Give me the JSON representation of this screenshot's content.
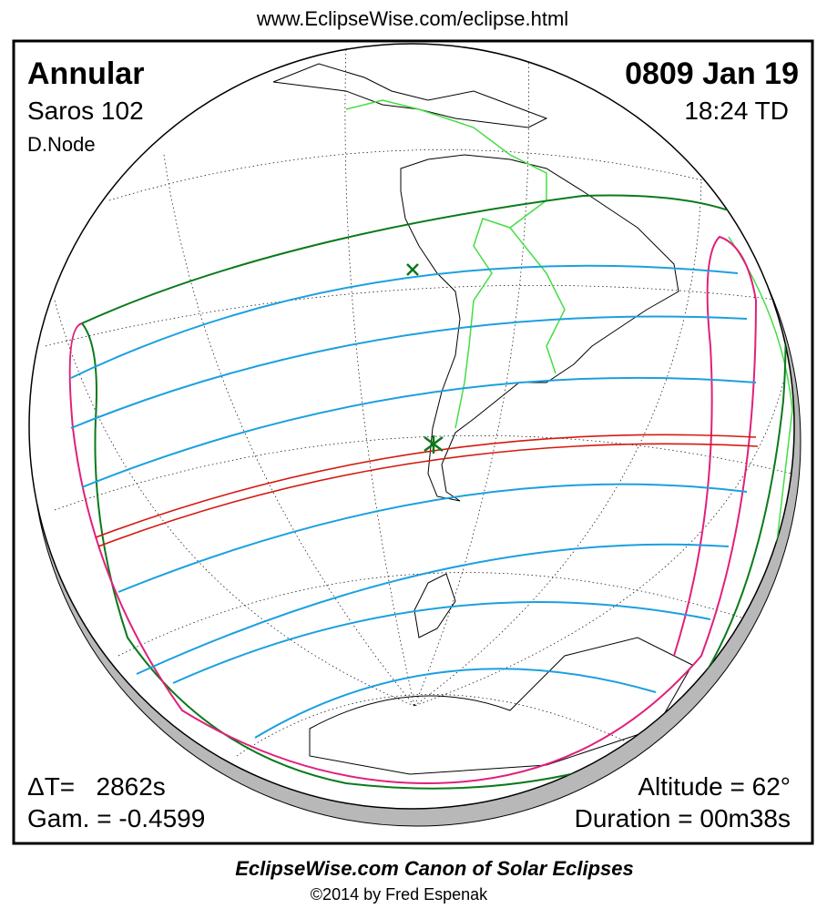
{
  "header": {
    "url": "www.EclipseWise.com/eclipse.html"
  },
  "info": {
    "eclipse_type": "Annular",
    "saros": "Saros 102",
    "node": "D.Node",
    "date": "0809 Jan 19",
    "time": "18:24 TD",
    "delta_t": "ΔT=   2862s",
    "gamma": "Gam. = -0.4599",
    "altitude": "Altitude = 62°",
    "duration": "Duration = 00m38s"
  },
  "footer": {
    "title": "EclipseWise.com Canon of Solar Eclipses",
    "copyright": "©2014 by Fred Espenak"
  }
}
